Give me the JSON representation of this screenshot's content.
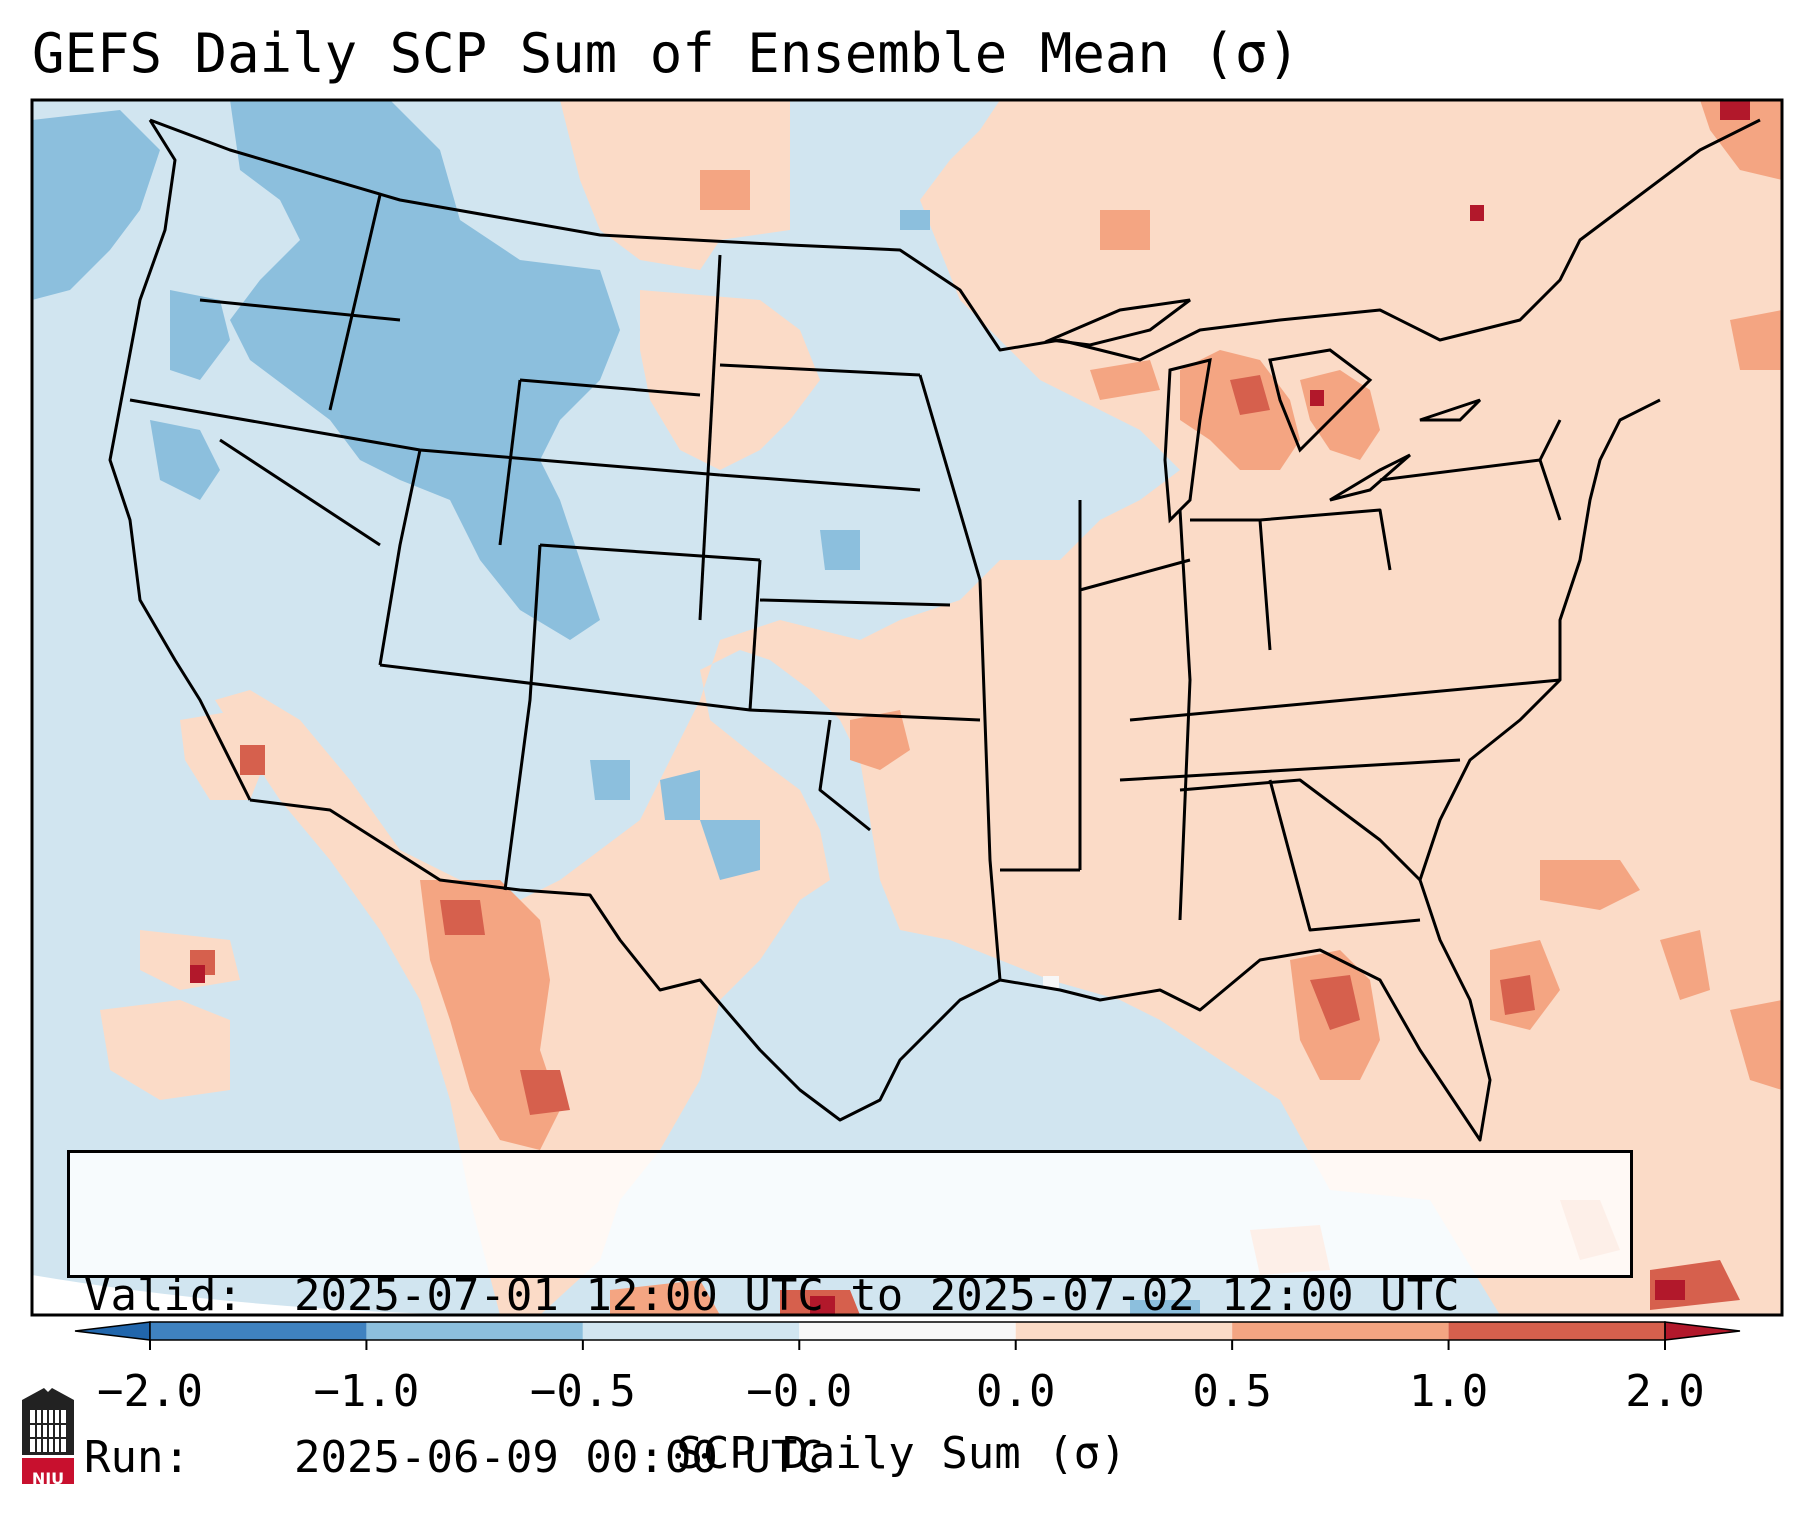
{
  "title": "GEFS Daily SCP Sum of Ensemble Mean (σ)",
  "valid": {
    "label": "Valid:",
    "value": "2025-07-01 12:00 UTC to 2025-07-02 12:00 UTC"
  },
  "run": {
    "label": "Run:",
    "value": "2025-06-09 00:00 UTC"
  },
  "colorbar": {
    "label": "SCP Daily Sum (σ)",
    "ticks": [
      "−2.0",
      "−1.0",
      "−0.5",
      "−0.0",
      "0.0",
      "0.5",
      "1.0",
      "2.0"
    ],
    "colors": [
      "#3f82c0",
      "#8cbfdd",
      "#d1e5f0",
      "#f7f7f7",
      "#fbdbc7",
      "#f4a582",
      "#d6604d",
      "#b2182b"
    ],
    "extend_low_color": "#2166ac",
    "extend_high_color": "#b2182b"
  },
  "logo": {
    "text": "NIU",
    "color": "#c8102e"
  }
}
